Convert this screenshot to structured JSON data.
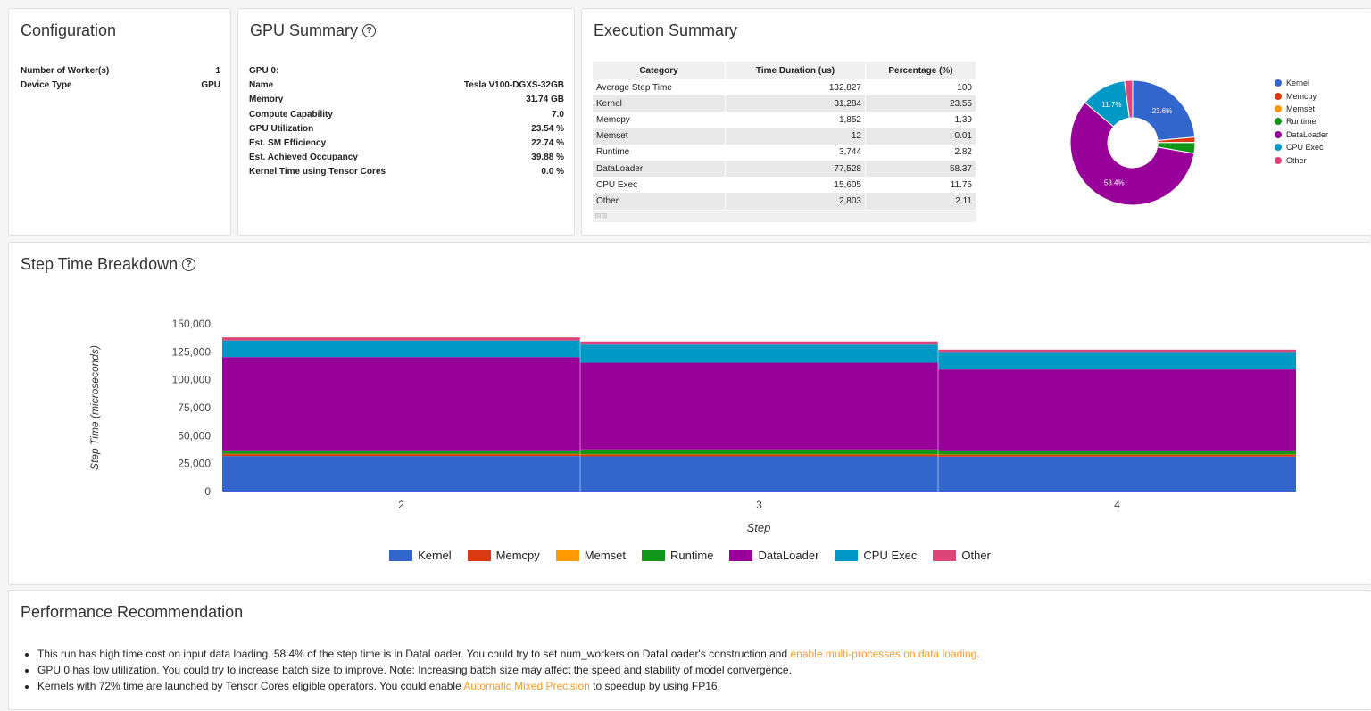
{
  "configuration": {
    "title": "Configuration",
    "rows": [
      {
        "label": "Number of Worker(s)",
        "value": "1"
      },
      {
        "label": "Device Type",
        "value": "GPU"
      }
    ]
  },
  "gpu_summary": {
    "title": "GPU Summary",
    "help_icon": "help-circle-icon",
    "gpu_header": "GPU 0:",
    "rows": [
      {
        "label": "Name",
        "value": "Tesla V100-DGXS-32GB"
      },
      {
        "label": "Memory",
        "value": "31.74 GB"
      },
      {
        "label": "Compute Capability",
        "value": "7.0"
      },
      {
        "label": "GPU Utilization",
        "value": "23.54 %"
      },
      {
        "label": "Est. SM Efficiency",
        "value": "22.74 %"
      },
      {
        "label": "Est. Achieved Occupancy",
        "value": "39.88 %"
      },
      {
        "label": "Kernel Time using Tensor Cores",
        "value": "0.0 %"
      }
    ]
  },
  "execution_summary": {
    "title": "Execution Summary",
    "columns": [
      "Category",
      "Time Duration (us)",
      "Percentage (%)"
    ],
    "rows": [
      {
        "category": "Average Step Time",
        "duration": "132,827",
        "percentage": "100"
      },
      {
        "category": "Kernel",
        "duration": "31,284",
        "percentage": "23.55"
      },
      {
        "category": "Memcpy",
        "duration": "1,852",
        "percentage": "1.39"
      },
      {
        "category": "Memset",
        "duration": "12",
        "percentage": "0.01"
      },
      {
        "category": "Runtime",
        "duration": "3,744",
        "percentage": "2.82"
      },
      {
        "category": "DataLoader",
        "duration": "77,528",
        "percentage": "58.37"
      },
      {
        "category": "CPU Exec",
        "duration": "15,605",
        "percentage": "11.75"
      },
      {
        "category": "Other",
        "duration": "2,803",
        "percentage": "2.11"
      }
    ],
    "pie_labels": {
      "kernel": "23.6%",
      "dataloader": "58.4%",
      "cpu_exec": "11.7%"
    },
    "legend": [
      {
        "label": "Kernel",
        "color": "#3366cc"
      },
      {
        "label": "Memcpy",
        "color": "#dc3912"
      },
      {
        "label": "Memset",
        "color": "#ff9900"
      },
      {
        "label": "Runtime",
        "color": "#109618"
      },
      {
        "label": "DataLoader",
        "color": "#990099"
      },
      {
        "label": "CPU Exec",
        "color": "#0099c6"
      },
      {
        "label": "Other",
        "color": "#dd4477"
      }
    ]
  },
  "step_time_breakdown": {
    "title": "Step Time Breakdown",
    "help_icon": "help-circle-icon"
  },
  "chart_data": [
    {
      "type": "pie",
      "title": "",
      "categories": [
        "Kernel",
        "Memcpy",
        "Memset",
        "Runtime",
        "DataLoader",
        "CPU Exec",
        "Other"
      ],
      "values": [
        23.55,
        1.39,
        0.01,
        2.82,
        58.37,
        11.75,
        2.11
      ],
      "colors": [
        "#3366cc",
        "#dc3912",
        "#ff9900",
        "#109618",
        "#990099",
        "#0099c6",
        "#dd4477"
      ],
      "donut": true,
      "legend": "right"
    },
    {
      "type": "area",
      "title": "",
      "xlabel": "Step",
      "ylabel": "Step Time (microseconds)",
      "categories": [
        "2",
        "3",
        "4"
      ],
      "yticks": [
        "0",
        "25,000",
        "50,000",
        "75,000",
        "100,000",
        "125,000",
        "150,000"
      ],
      "ylim": [
        0,
        150000
      ],
      "stacked": true,
      "stepped": true,
      "series": [
        {
          "name": "Kernel",
          "color": "#3366cc",
          "values": [
            31800,
            31500,
            31300
          ]
        },
        {
          "name": "Memcpy",
          "color": "#dc3912",
          "values": [
            1900,
            1850,
            1800
          ]
        },
        {
          "name": "Memset",
          "color": "#ff9900",
          "values": [
            12,
            12,
            12
          ]
        },
        {
          "name": "Runtime",
          "color": "#109618",
          "values": [
            3100,
            4300,
            3700
          ]
        },
        {
          "name": "DataLoader",
          "color": "#990099",
          "values": [
            83500,
            77600,
            72400
          ]
        },
        {
          "name": "CPU Exec",
          "color": "#0099c6",
          "values": [
            14800,
            16200,
            15000
          ]
        },
        {
          "name": "Other",
          "color": "#dd4477",
          "values": [
            2800,
            2800,
            2800
          ]
        }
      ],
      "legend": "bottom"
    }
  ],
  "performance_recommendation": {
    "title": "Performance Recommendation",
    "items": [
      {
        "text": "This run has high time cost on input data loading. 58.4% of the step time is in DataLoader. You could try to set num_workers on DataLoader's construction and ",
        "link": "enable multi-processes on data loading",
        "after": "."
      },
      {
        "text": "GPU 0 has low utilization. You could try to increase batch size to improve. Note: Increasing batch size may affect the speed and stability of model convergence.",
        "link": "",
        "after": ""
      },
      {
        "text": "Kernels with 72% time are launched by Tensor Cores eligible operators. You could enable ",
        "link": "Automatic Mixed Precision",
        "after": " to speedup by using FP16."
      }
    ]
  }
}
